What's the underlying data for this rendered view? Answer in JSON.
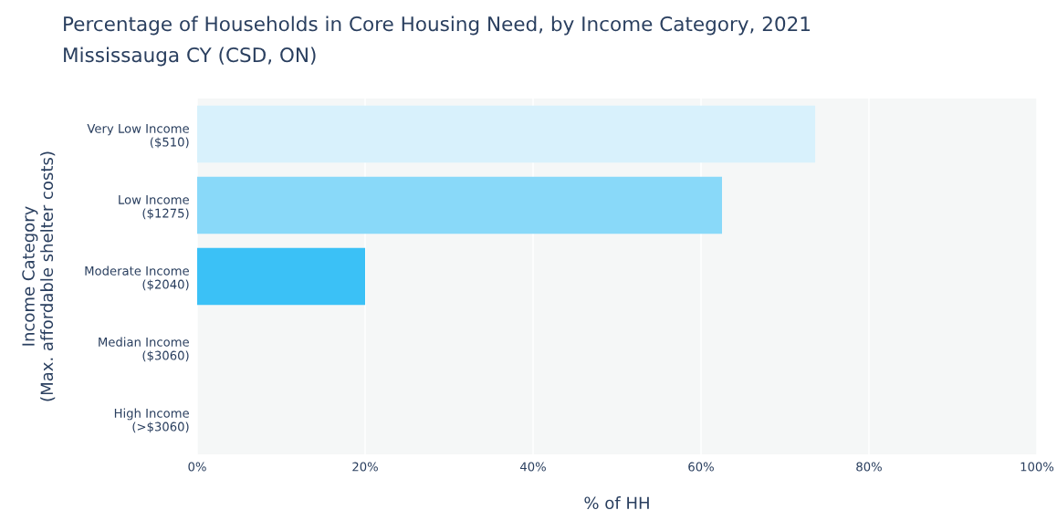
{
  "chart_data": {
    "type": "bar",
    "orientation": "horizontal",
    "title": "Percentage of Households in Core Housing Need, by Income Category, 2021",
    "subtitle": "Mississauga CY (CSD, ON)",
    "xlabel": "% of HH",
    "ylabel": "Income Category\n(Max. affordable shelter costs)",
    "categories": [
      "Very Low Income\n($510)",
      "Low Income\n($1275)",
      "Moderate Income\n($2040)",
      "Median Income\n($3060)",
      "High Income\n(>$3060)"
    ],
    "values": [
      73.6,
      62.5,
      20.0,
      0,
      0
    ],
    "colors": [
      "#d8f1fc",
      "#89d9f9",
      "#3bc1f6",
      "#0c9ad6",
      "#086a96"
    ],
    "xlim": [
      0,
      100
    ],
    "xticks": [
      {
        "value": 0,
        "label": "0%"
      },
      {
        "value": 20,
        "label": "20%"
      },
      {
        "value": 40,
        "label": "40%"
      },
      {
        "value": 60,
        "label": "60%"
      },
      {
        "value": 80,
        "label": "80%"
      },
      {
        "value": 100,
        "label": "100%"
      }
    ],
    "grid": "x"
  }
}
